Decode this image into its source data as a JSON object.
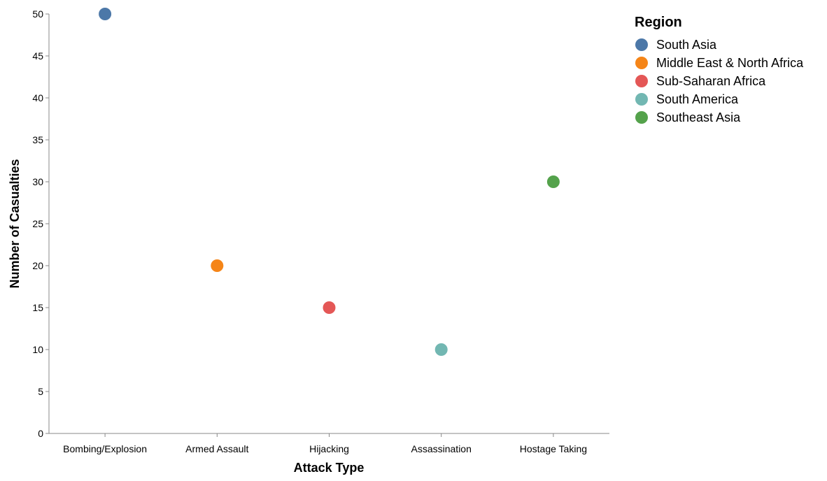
{
  "chart_data": {
    "type": "scatter",
    "title": "",
    "xlabel": "Attack Type",
    "ylabel": "Number of Casualties",
    "categories": [
      "Bombing/Explosion",
      "Armed Assault",
      "Hijacking",
      "Assassination",
      "Hostage Taking"
    ],
    "ylim": [
      0,
      50
    ],
    "yticks": [
      "0",
      "5",
      "10",
      "15",
      "20",
      "25",
      "30",
      "35",
      "40",
      "45",
      "50"
    ],
    "grid": false,
    "legend": {
      "title": "Region",
      "placement": "top-right",
      "items": [
        {
          "label": "South Asia",
          "color": "#4c78a8"
        },
        {
          "label": "Middle East & North Africa",
          "color": "#f58518"
        },
        {
          "label": "Sub-Saharan Africa",
          "color": "#e45756"
        },
        {
          "label": "South America",
          "color": "#72b7b2"
        },
        {
          "label": "Southeast Asia",
          "color": "#54a24b"
        }
      ]
    },
    "points": [
      {
        "category": "Bombing/Explosion",
        "region": "South Asia",
        "value": 50,
        "color": "#4c78a8"
      },
      {
        "category": "Armed Assault",
        "region": "Middle East & North Africa",
        "value": 20,
        "color": "#f58518"
      },
      {
        "category": "Hijacking",
        "region": "Sub-Saharan Africa",
        "value": 15,
        "color": "#e45756"
      },
      {
        "category": "Assassination",
        "region": "South America",
        "value": 10,
        "color": "#72b7b2"
      },
      {
        "category": "Hostage Taking",
        "region": "Southeast Asia",
        "value": 30,
        "color": "#54a24b"
      }
    ]
  }
}
